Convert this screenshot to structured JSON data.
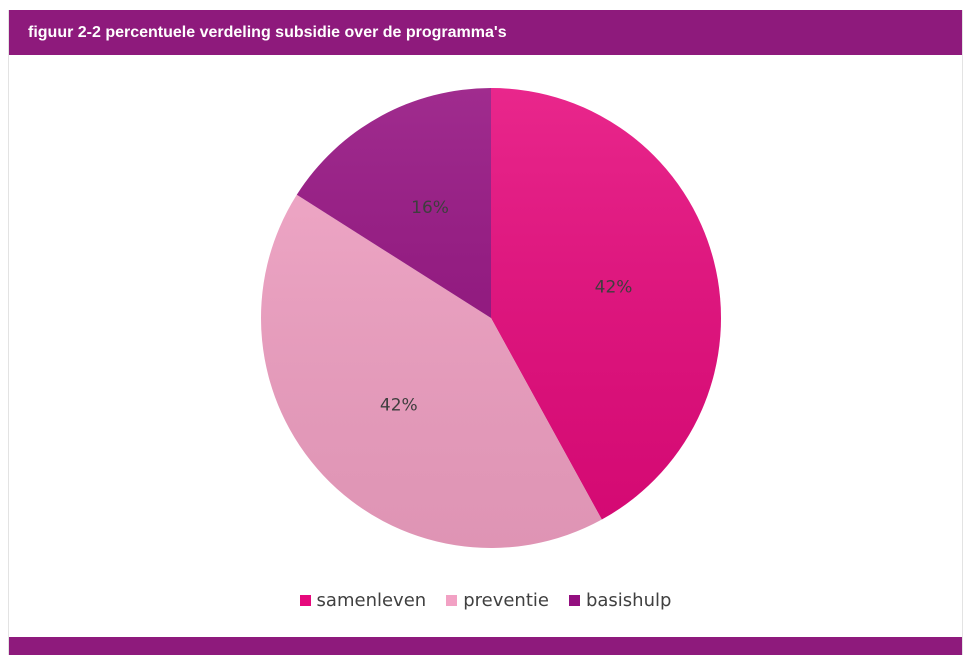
{
  "header": {
    "title": "figuur 2-2 percentuele verdeling subsidie over de programma's"
  },
  "chart_data": {
    "type": "pie",
    "title": "",
    "slices": [
      {
        "name": "samenleven",
        "value": 42,
        "label": "42%",
        "color": "#e6097c"
      },
      {
        "name": "preventie",
        "value": 42,
        "label": "42%",
        "color": "#f2a1c4"
      },
      {
        "name": "basishulp",
        "value": 16,
        "label": "16%",
        "color": "#930f7f"
      }
    ],
    "legend_position": "bottom"
  }
}
